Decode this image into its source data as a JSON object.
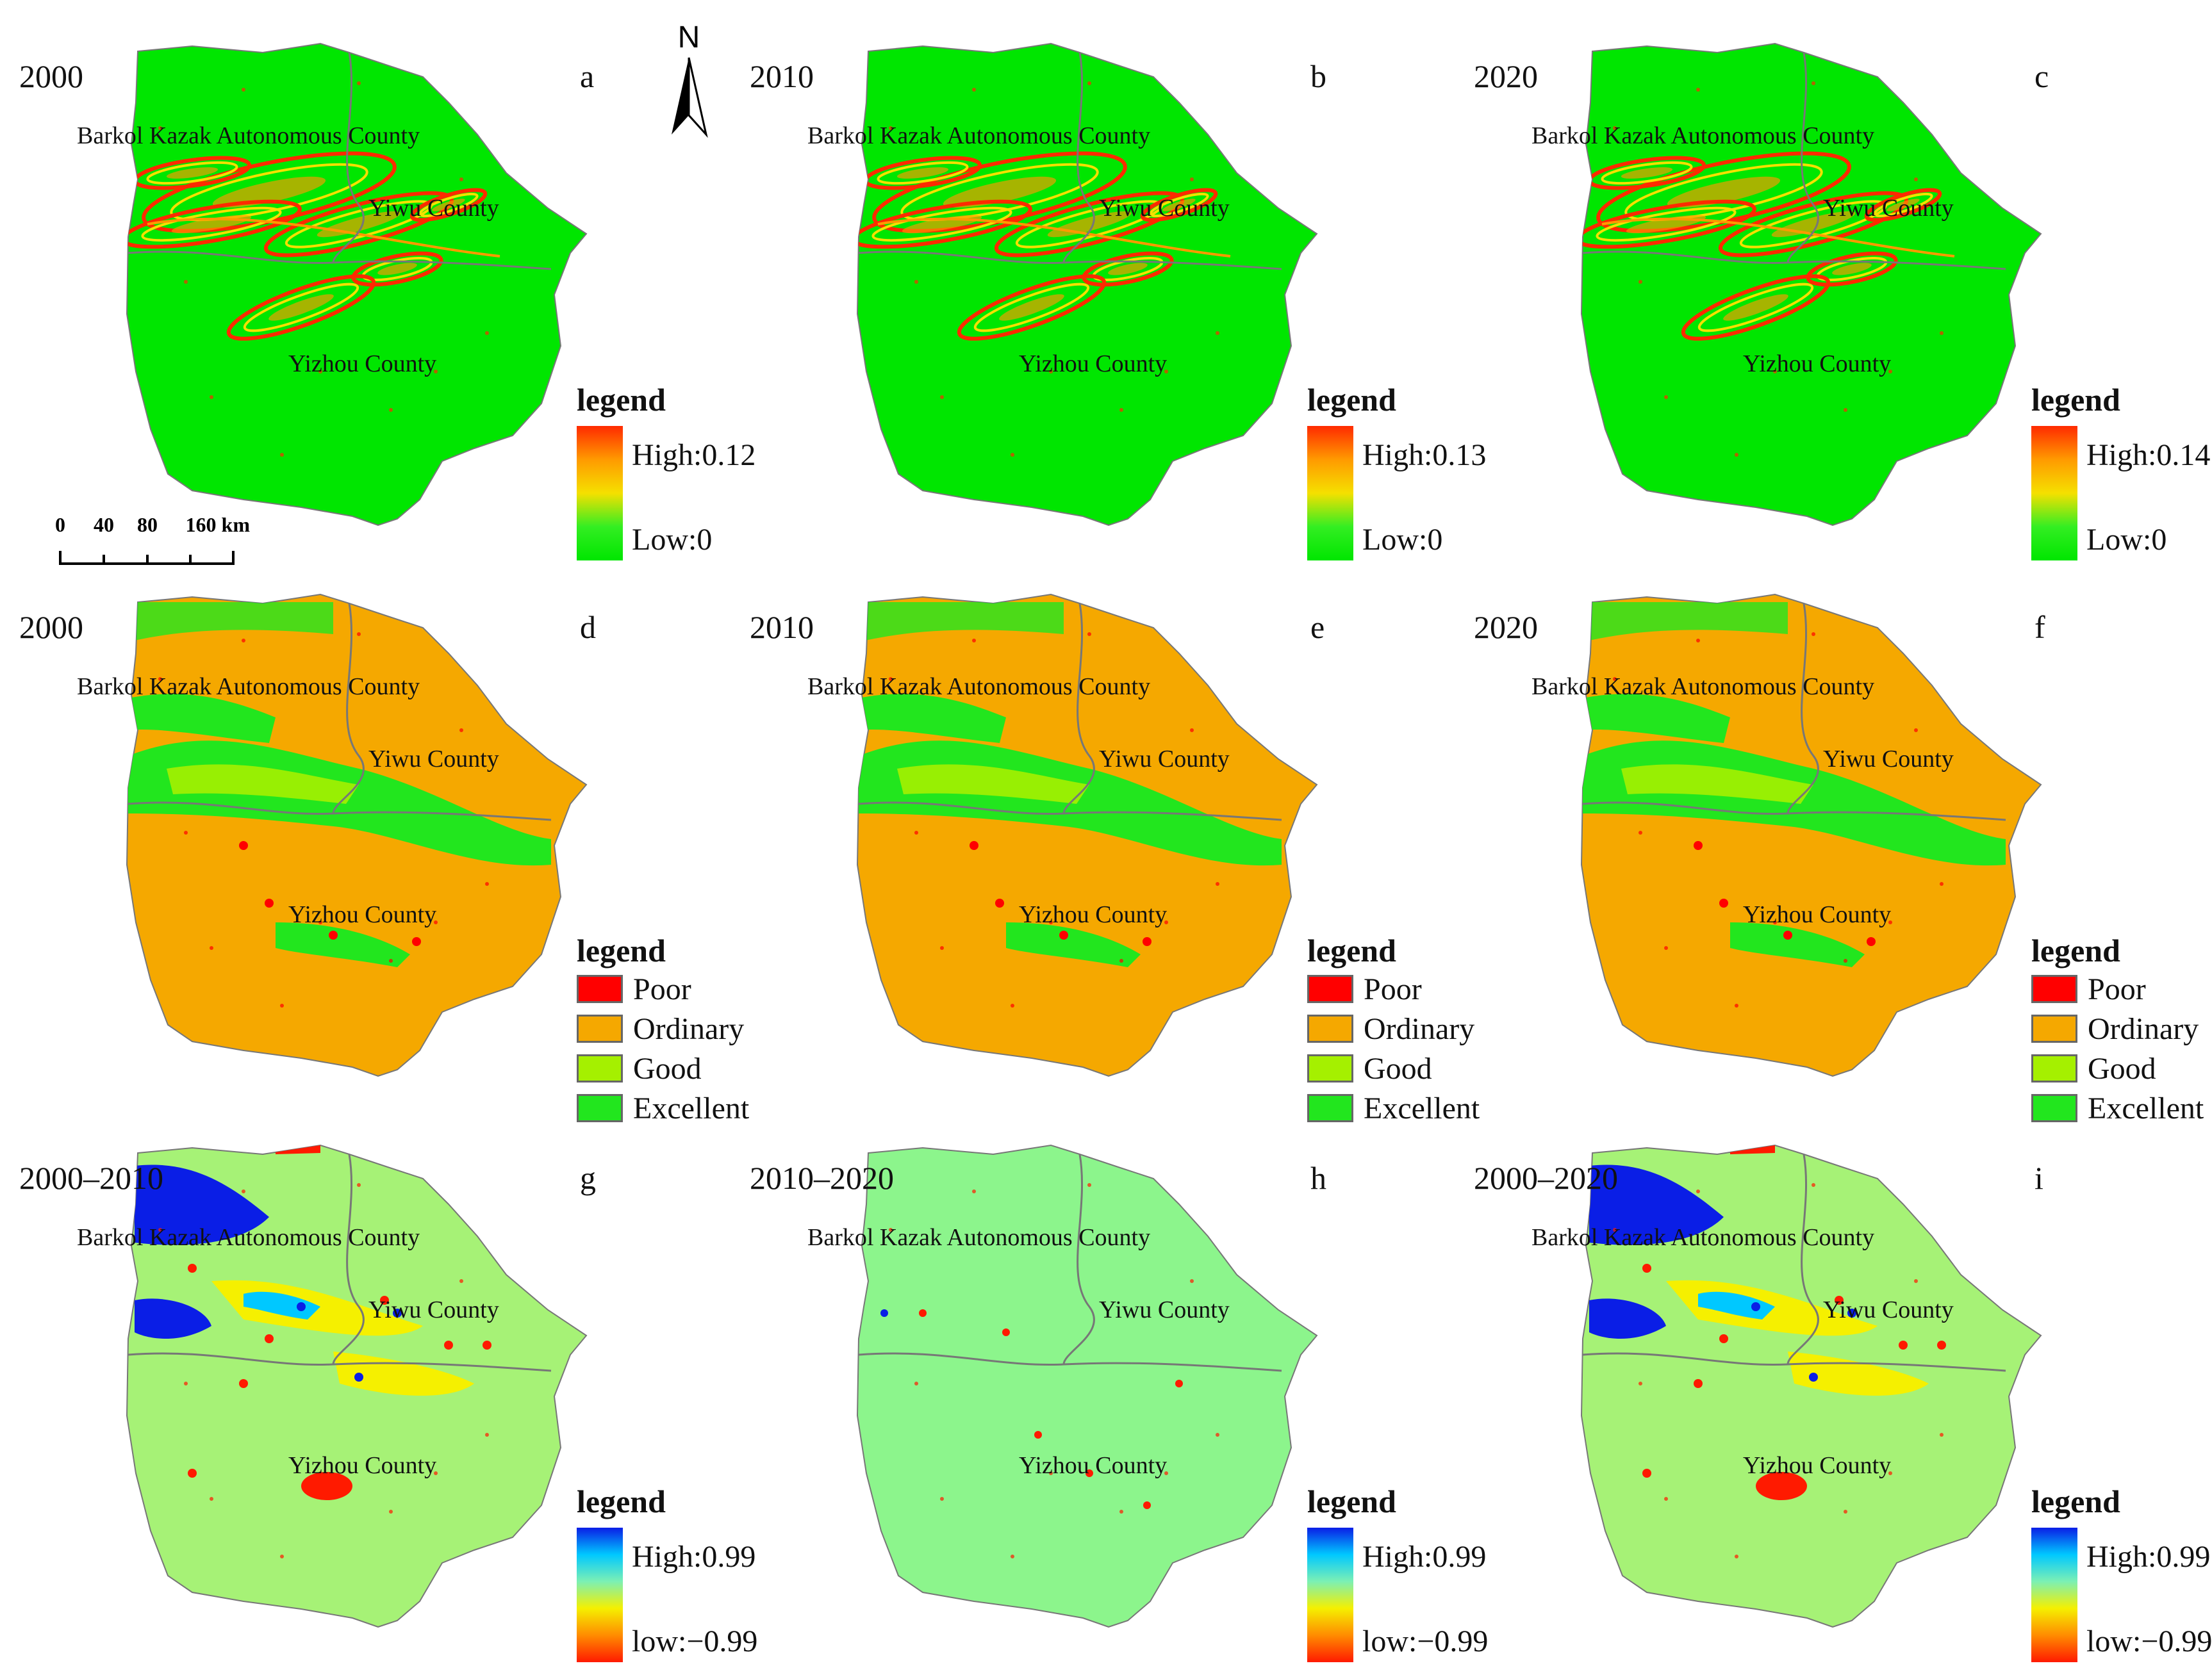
{
  "panels": [
    {
      "id": "a",
      "year": "2000",
      "letter": "a",
      "kind": "gradient",
      "legend_title": "legend",
      "high": "High:0.12",
      "low": "Low:0",
      "base_color": "#00e600",
      "ramp": [
        "#ff2a00",
        "#ff9a00",
        "#f5e000",
        "#33ee22",
        "#00e600"
      ],
      "labels": {
        "barkol": "Barkol Kazak Autonomous County",
        "yiwu": "Yiwu County",
        "yizhou": "Yizhou County"
      }
    },
    {
      "id": "b",
      "year": "2010",
      "letter": "b",
      "kind": "gradient",
      "legend_title": "legend",
      "high": "High:0.13",
      "low": "Low:0",
      "base_color": "#00e600",
      "ramp": [
        "#ff2a00",
        "#ff9a00",
        "#f5e000",
        "#33ee22",
        "#00e600"
      ],
      "labels": {
        "barkol": "Barkol Kazak Autonomous County",
        "yiwu": "Yiwu County",
        "yizhou": "Yizhou County"
      }
    },
    {
      "id": "c",
      "year": "2020",
      "letter": "c",
      "kind": "gradient",
      "legend_title": "legend",
      "high": "High:0.14",
      "low": "Low:0",
      "base_color": "#00e600",
      "ramp": [
        "#ff2a00",
        "#ff9a00",
        "#f5e000",
        "#33ee22",
        "#00e600"
      ],
      "labels": {
        "barkol": "Barkol Kazak Autonomous County",
        "yiwu": "Yiwu County",
        "yizhou": "Yizhou County"
      }
    },
    {
      "id": "d",
      "year": "2000",
      "letter": "d",
      "kind": "class",
      "legend_title": "legend",
      "base_color": "#f5a800",
      "classes": [
        {
          "name": "Poor",
          "color": "#ff0000"
        },
        {
          "name": "Ordinary",
          "color": "#f5a800"
        },
        {
          "name": "Good",
          "color": "#a5f000"
        },
        {
          "name": "Excellent",
          "color": "#22e61e"
        }
      ],
      "labels": {
        "barkol": "Barkol Kazak Autonomous County",
        "yiwu": "Yiwu County",
        "yizhou": "Yizhou County"
      }
    },
    {
      "id": "e",
      "year": "2010",
      "letter": "e",
      "kind": "class",
      "legend_title": "legend",
      "base_color": "#f5a800",
      "classes": [
        {
          "name": "Poor",
          "color": "#ff0000"
        },
        {
          "name": "Ordinary",
          "color": "#f5a800"
        },
        {
          "name": "Good",
          "color": "#a5f000"
        },
        {
          "name": "Excellent",
          "color": "#22e61e"
        }
      ],
      "labels": {
        "barkol": "Barkol Kazak Autonomous County",
        "yiwu": "Yiwu County",
        "yizhou": "Yizhou County"
      }
    },
    {
      "id": "f",
      "year": "2020",
      "letter": "f",
      "kind": "class",
      "legend_title": "legend",
      "base_color": "#f5a800",
      "classes": [
        {
          "name": "Poor",
          "color": "#ff0000"
        },
        {
          "name": "Ordinary",
          "color": "#f5a800"
        },
        {
          "name": "Good",
          "color": "#a5f000"
        },
        {
          "name": "Excellent",
          "color": "#22e61e"
        }
      ],
      "labels": {
        "barkol": "Barkol Kazak Autonomous County",
        "yiwu": "Yiwu County",
        "yizhou": "Yizhou County"
      }
    },
    {
      "id": "g",
      "year": "2000–2010",
      "letter": "g",
      "kind": "change",
      "legend_title": "legend",
      "high": "High:0.99",
      "low": "low:−0.99",
      "base_color": "#a6f276",
      "ramp": [
        "#0a1ee6",
        "#00c8ff",
        "#7cf0b4",
        "#f5f000",
        "#ff8c00",
        "#ff1a00"
      ],
      "labels": {
        "barkol": "Barkol Kazak Autonomous County",
        "yiwu": "Yiwu County",
        "yizhou": "Yizhou County"
      }
    },
    {
      "id": "h",
      "year": "2010–2020",
      "letter": "h",
      "kind": "change",
      "legend_title": "legend",
      "high": "High:0.99",
      "low": "low:−0.99",
      "base_color": "#8cf58c",
      "ramp": [
        "#0a1ee6",
        "#00c8ff",
        "#7cf0b4",
        "#f5f000",
        "#ff8c00",
        "#ff1a00"
      ],
      "labels": {
        "barkol": "Barkol Kazak Autonomous County",
        "yiwu": "Yiwu County",
        "yizhou": "Yizhou County"
      }
    },
    {
      "id": "i",
      "year": "2000–2020",
      "letter": "i",
      "kind": "change",
      "legend_title": "legend",
      "high": "High:0.99",
      "low": "low:−0.99",
      "base_color": "#a6f276",
      "ramp": [
        "#0a1ee6",
        "#00c8ff",
        "#7cf0b4",
        "#f5f000",
        "#ff8c00",
        "#ff1a00"
      ],
      "labels": {
        "barkol": "Barkol Kazak Autonomous County",
        "yiwu": "Yiwu County",
        "yizhou": "Yizhou County"
      }
    }
  ],
  "north_arrow": {
    "letter": "N"
  },
  "scale_bar": {
    "ticks": [
      "0",
      "40",
      "80",
      "160 km"
    ]
  }
}
